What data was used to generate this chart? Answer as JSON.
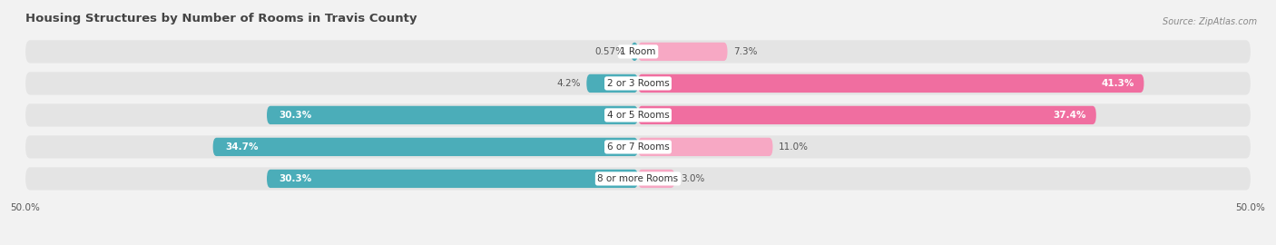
{
  "title": "Housing Structures by Number of Rooms in Travis County",
  "source": "Source: ZipAtlas.com",
  "categories": [
    "1 Room",
    "2 or 3 Rooms",
    "4 or 5 Rooms",
    "6 or 7 Rooms",
    "8 or more Rooms"
  ],
  "owner_values": [
    0.57,
    4.2,
    30.3,
    34.7,
    30.3
  ],
  "renter_values": [
    7.3,
    41.3,
    37.4,
    11.0,
    3.0
  ],
  "owner_color": "#4BADB9",
  "renter_color_light": "#F7A8C4",
  "renter_color_dark": "#F06EA0",
  "xlim_left": -50,
  "xlim_right": 50,
  "bar_height": 0.58,
  "bg_bar_height": 0.72,
  "background_color": "#f2f2f2",
  "bar_bg_color": "#e4e4e4",
  "title_fontsize": 9.5,
  "value_fontsize": 7.5,
  "cat_fontsize": 7.5,
  "axis_fontsize": 7.5,
  "source_fontsize": 7
}
